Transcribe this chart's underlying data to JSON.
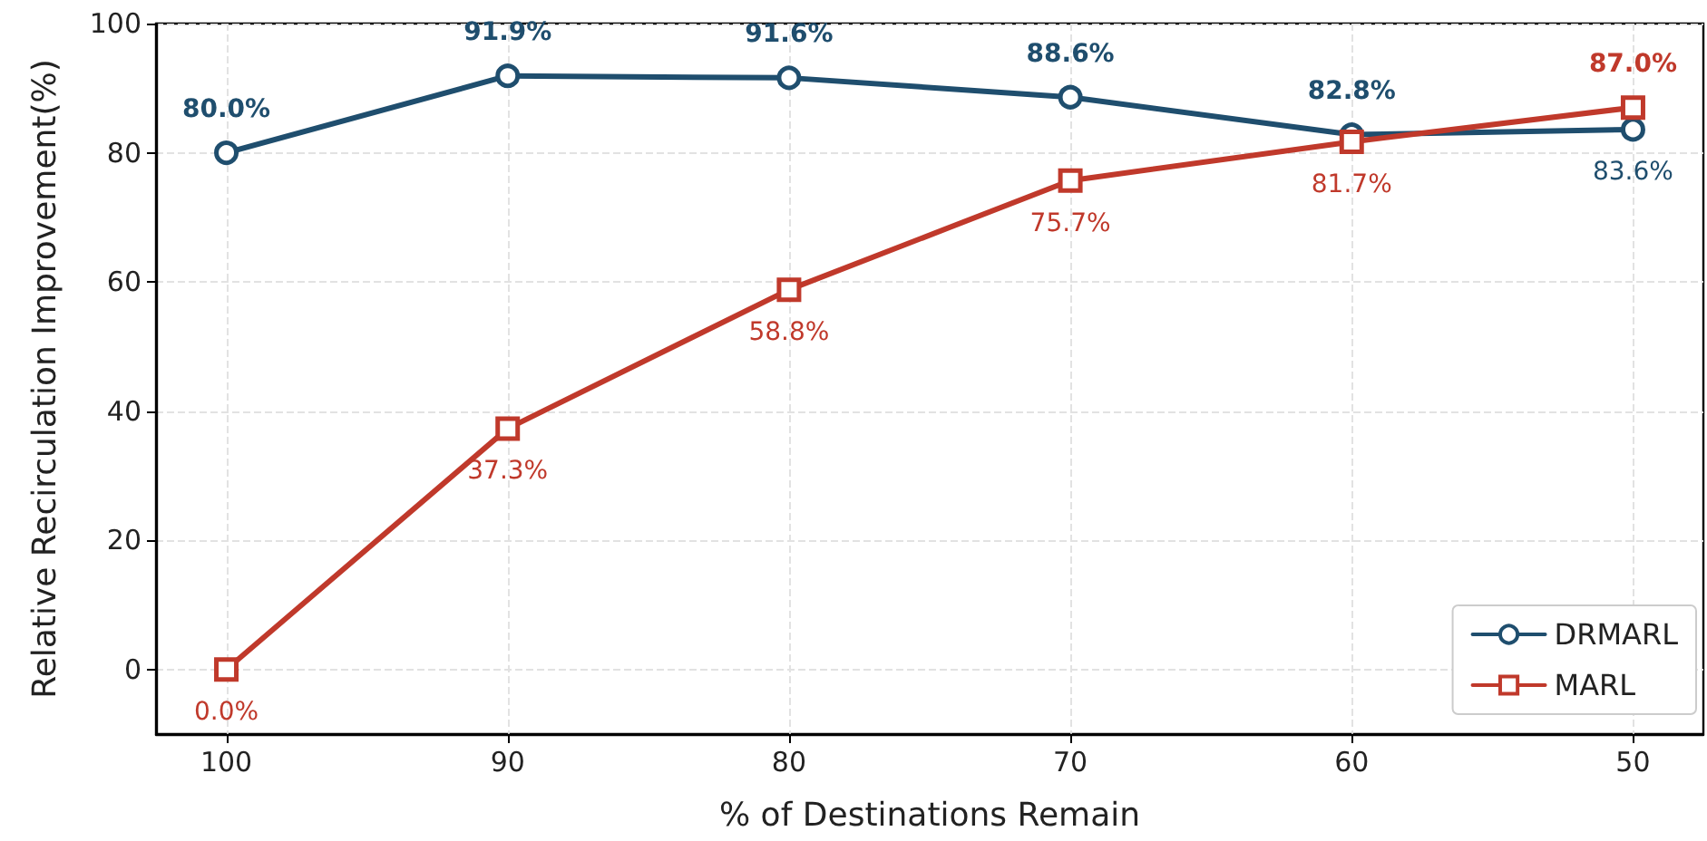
{
  "chart_data": {
    "type": "line",
    "xlabel": "% of Destinations Remain",
    "ylabel": "Relative Recirculation Improvement(%)",
    "x": [
      100,
      90,
      80,
      70,
      60,
      50
    ],
    "xlim": [
      102.5,
      47.5
    ],
    "xticks": [
      100,
      90,
      80,
      70,
      60,
      50
    ],
    "ylim": [
      -10,
      100
    ],
    "yticks": [
      0,
      20,
      40,
      60,
      80,
      100
    ],
    "series": [
      {
        "name": "DRMARL",
        "color": "#1f4e6e",
        "marker": "circle",
        "values": [
          80.0,
          91.9,
          91.6,
          88.6,
          82.8,
          83.6
        ],
        "value_labels": [
          "80.0%",
          "91.9%",
          "91.6%",
          "88.6%",
          "82.8%",
          "83.6%"
        ]
      },
      {
        "name": "MARL",
        "color": "#c0392b",
        "marker": "square",
        "values": [
          0.0,
          37.3,
          58.8,
          75.7,
          81.7,
          87.0
        ],
        "value_labels": [
          "0.0%",
          "37.3%",
          "58.8%",
          "75.7%",
          "81.7%",
          "87.0%"
        ]
      }
    ],
    "grid": true,
    "legend": "bottom right",
    "line_style": "solid"
  }
}
